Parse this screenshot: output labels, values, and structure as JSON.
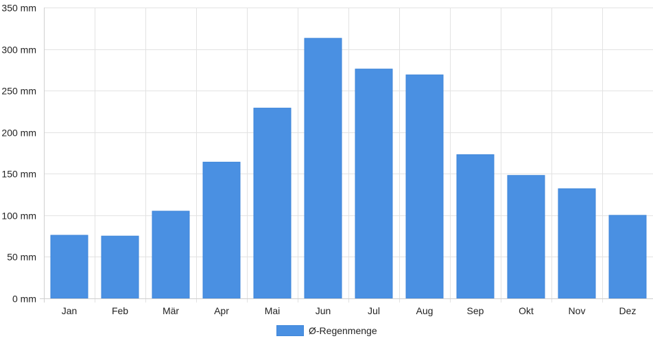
{
  "chart_data": {
    "type": "bar",
    "categories": [
      "Jan",
      "Feb",
      "Mär",
      "Apr",
      "Mai",
      "Jun",
      "Jul",
      "Aug",
      "Sep",
      "Okt",
      "Nov",
      "Dez"
    ],
    "series": [
      {
        "name": "Ø-Regenmenge",
        "values": [
          76,
          75,
          105,
          164,
          229,
          313,
          276,
          269,
          173,
          148,
          132,
          100
        ],
        "color": "#4a90e2"
      }
    ],
    "y_ticks": [
      "0 mm",
      "50 mm",
      "100 mm",
      "150 mm",
      "200 mm",
      "250 mm",
      "300 mm",
      "350 mm"
    ],
    "ylim": [
      0,
      350
    ],
    "y_unit": "mm",
    "grid": true,
    "legend_position": "bottom"
  }
}
